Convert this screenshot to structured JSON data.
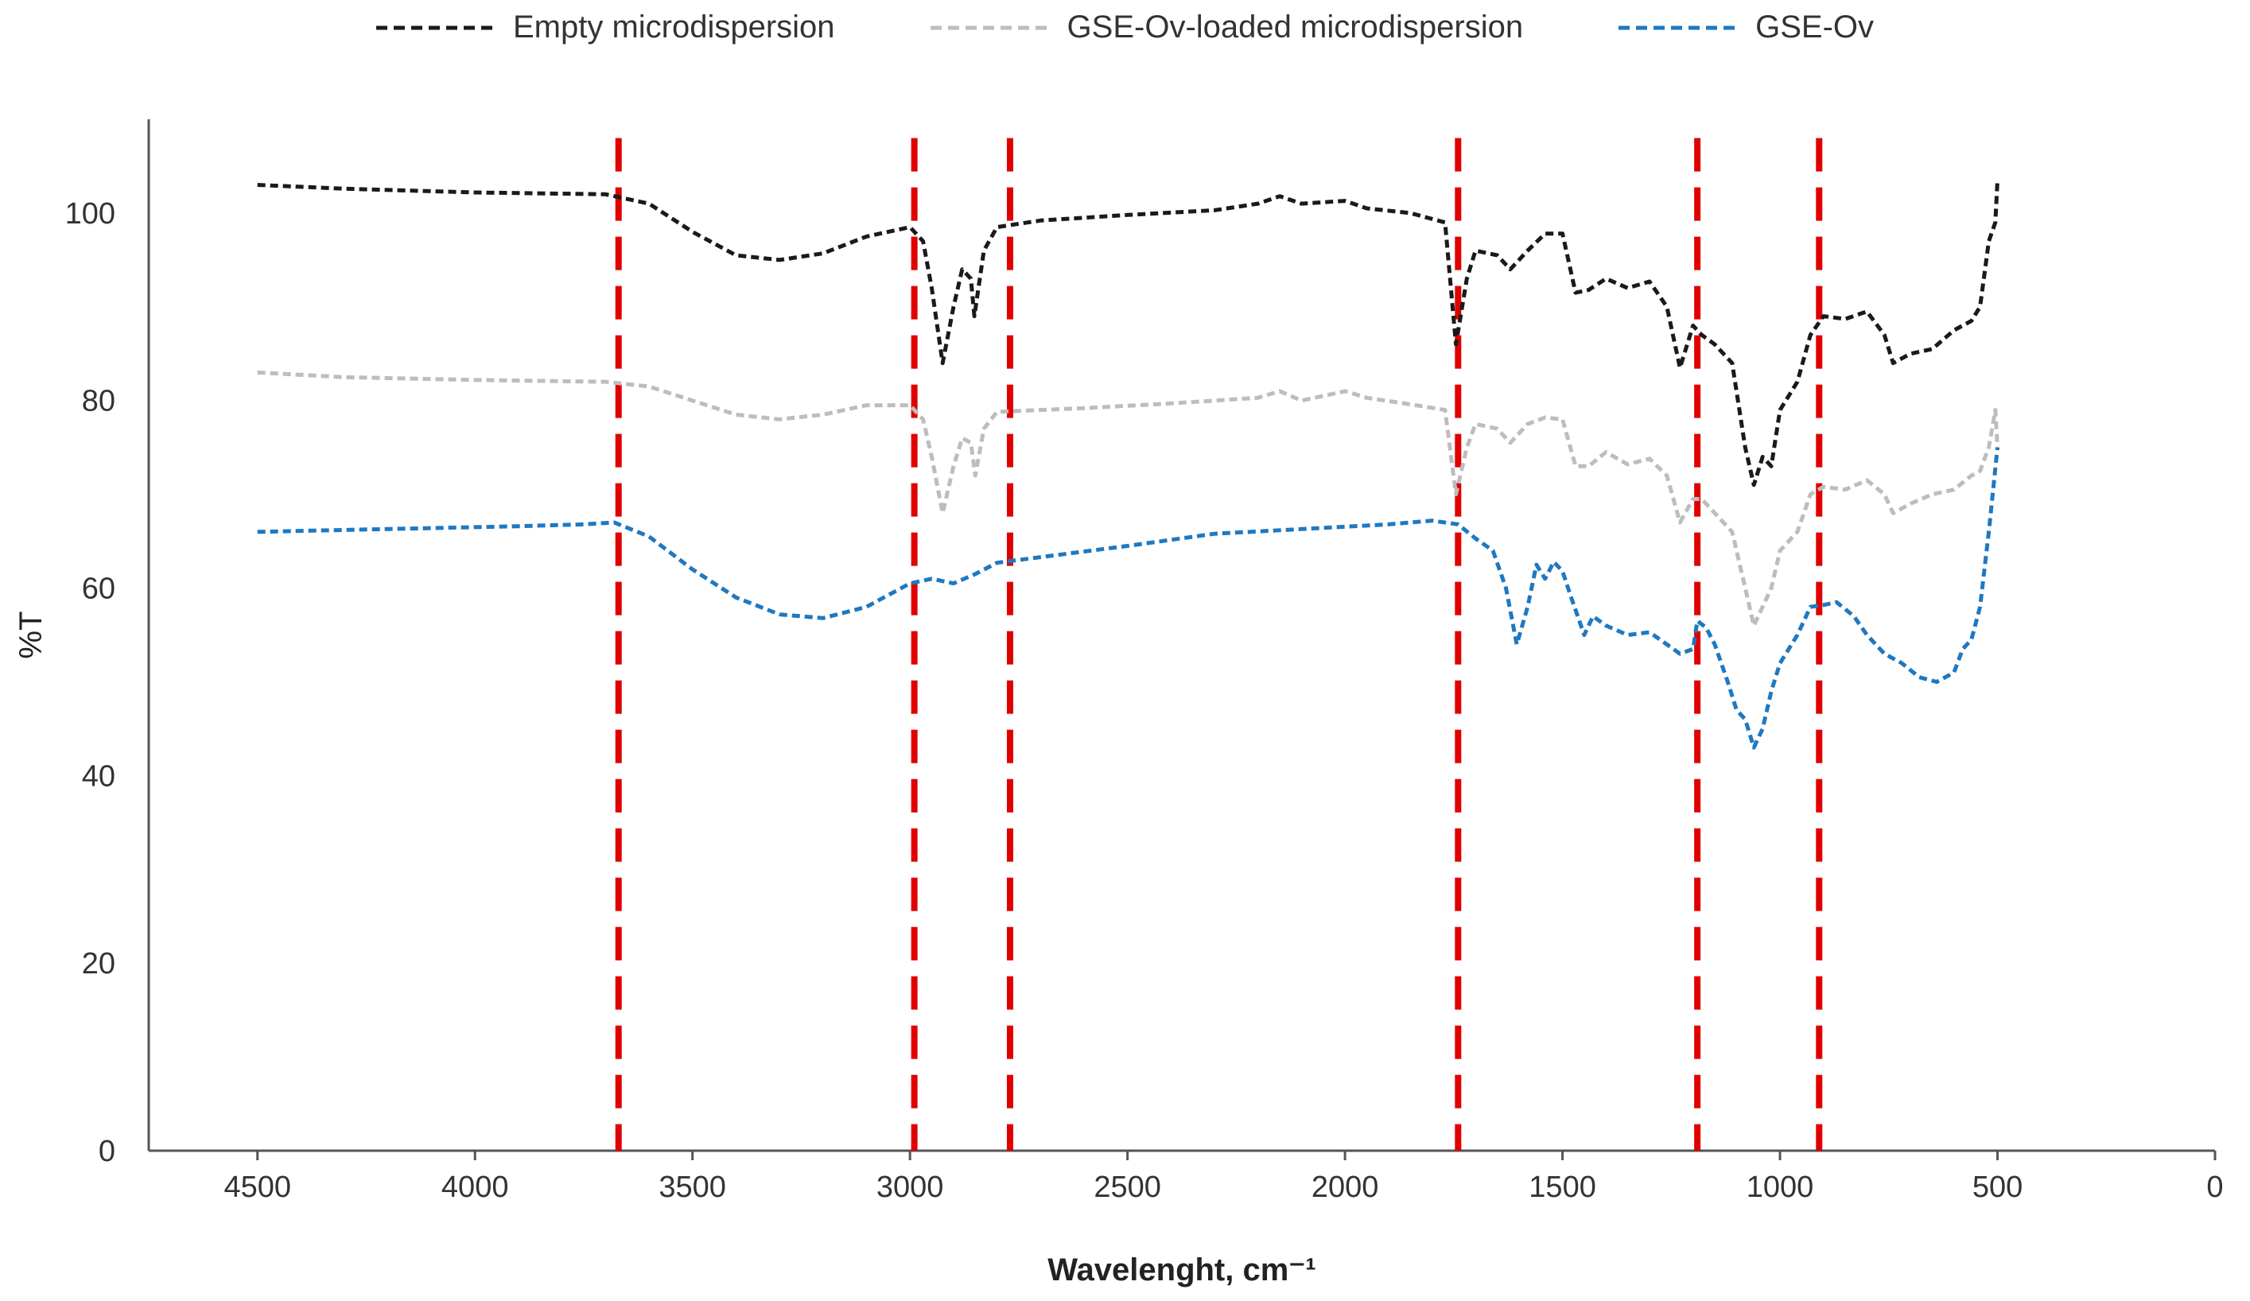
{
  "chart_data": {
    "type": "line",
    "title": "",
    "xlabel": "Wavelenght, cm⁻¹",
    "ylabel": "%T",
    "xlim": [
      4750,
      0
    ],
    "ylim": [
      0,
      110
    ],
    "x_ticks": [
      "4500",
      "4000",
      "3500",
      "3000",
      "2500",
      "2000",
      "1500",
      "1000",
      "500",
      "0"
    ],
    "y_ticks": [
      "0",
      "20",
      "40",
      "60",
      "80",
      "100"
    ],
    "x_tick_values": [
      4500,
      4000,
      3500,
      3000,
      2500,
      2000,
      1500,
      1000,
      500,
      0
    ],
    "y_tick_values": [
      0,
      20,
      40,
      60,
      80,
      100
    ],
    "legend_position": "top-center",
    "grid": false,
    "reference_lines": {
      "color": "#e00000",
      "x": [
        3670,
        2990,
        2770,
        1740,
        1190,
        910
      ]
    },
    "series": [
      {
        "name": "Empty microdispersion",
        "color": "#1a1a1a",
        "points": [
          [
            4500,
            103
          ],
          [
            4300,
            102.6
          ],
          [
            4000,
            102.2
          ],
          [
            3700,
            102
          ],
          [
            3600,
            101
          ],
          [
            3500,
            98
          ],
          [
            3400,
            95.5
          ],
          [
            3300,
            95
          ],
          [
            3200,
            95.7
          ],
          [
            3100,
            97.5
          ],
          [
            3000,
            98.5
          ],
          [
            2970,
            97
          ],
          [
            2950,
            92
          ],
          [
            2925,
            84
          ],
          [
            2900,
            90
          ],
          [
            2880,
            94
          ],
          [
            2860,
            93
          ],
          [
            2852,
            89
          ],
          [
            2830,
            96
          ],
          [
            2800,
            98.5
          ],
          [
            2700,
            99.2
          ],
          [
            2500,
            99.8
          ],
          [
            2300,
            100.3
          ],
          [
            2200,
            101
          ],
          [
            2150,
            101.8
          ],
          [
            2100,
            101
          ],
          [
            2000,
            101.3
          ],
          [
            1950,
            100.5
          ],
          [
            1850,
            100
          ],
          [
            1770,
            99
          ],
          [
            1745,
            86
          ],
          [
            1720,
            93
          ],
          [
            1700,
            96
          ],
          [
            1650,
            95.5
          ],
          [
            1620,
            94
          ],
          [
            1580,
            96
          ],
          [
            1540,
            97.8
          ],
          [
            1500,
            97.8
          ],
          [
            1470,
            91.5
          ],
          [
            1440,
            91.8
          ],
          [
            1400,
            93
          ],
          [
            1350,
            92
          ],
          [
            1300,
            92.7
          ],
          [
            1260,
            90
          ],
          [
            1230,
            83.5
          ],
          [
            1200,
            88
          ],
          [
            1180,
            87
          ],
          [
            1150,
            86
          ],
          [
            1110,
            84
          ],
          [
            1080,
            75
          ],
          [
            1060,
            71
          ],
          [
            1040,
            74
          ],
          [
            1020,
            73
          ],
          [
            1000,
            79
          ],
          [
            960,
            82
          ],
          [
            930,
            87
          ],
          [
            900,
            89
          ],
          [
            850,
            88.7
          ],
          [
            800,
            89.5
          ],
          [
            760,
            87
          ],
          [
            740,
            84
          ],
          [
            700,
            85
          ],
          [
            650,
            85.5
          ],
          [
            600,
            87.5
          ],
          [
            560,
            88.5
          ],
          [
            540,
            90
          ],
          [
            520,
            97
          ],
          [
            505,
            99
          ],
          [
            500,
            103.5
          ]
        ]
      },
      {
        "name": "GSE-Ov-loaded microdispersion",
        "color": "#bdbdbd",
        "points": [
          [
            4500,
            83
          ],
          [
            4300,
            82.5
          ],
          [
            4000,
            82.2
          ],
          [
            3700,
            82
          ],
          [
            3600,
            81.5
          ],
          [
            3500,
            80
          ],
          [
            3400,
            78.5
          ],
          [
            3300,
            78
          ],
          [
            3200,
            78.5
          ],
          [
            3100,
            79.5
          ],
          [
            3000,
            79.5
          ],
          [
            2970,
            78
          ],
          [
            2950,
            74
          ],
          [
            2925,
            68
          ],
          [
            2900,
            73
          ],
          [
            2880,
            76
          ],
          [
            2860,
            75.5
          ],
          [
            2850,
            72
          ],
          [
            2830,
            77
          ],
          [
            2800,
            78.8
          ],
          [
            2600,
            79.2
          ],
          [
            2400,
            79.7
          ],
          [
            2200,
            80.3
          ],
          [
            2150,
            81
          ],
          [
            2100,
            80
          ],
          [
            2000,
            81
          ],
          [
            1950,
            80.3
          ],
          [
            1850,
            79.6
          ],
          [
            1770,
            79
          ],
          [
            1745,
            70
          ],
          [
            1720,
            75
          ],
          [
            1700,
            77.5
          ],
          [
            1650,
            77
          ],
          [
            1620,
            75.5
          ],
          [
            1580,
            77.5
          ],
          [
            1540,
            78.2
          ],
          [
            1500,
            78
          ],
          [
            1470,
            73
          ],
          [
            1440,
            73
          ],
          [
            1400,
            74.5
          ],
          [
            1350,
            73.2
          ],
          [
            1300,
            73.8
          ],
          [
            1260,
            72
          ],
          [
            1230,
            67
          ],
          [
            1200,
            69.5
          ],
          [
            1180,
            69.5
          ],
          [
            1150,
            68
          ],
          [
            1110,
            66
          ],
          [
            1080,
            60
          ],
          [
            1060,
            56
          ],
          [
            1040,
            58
          ],
          [
            1020,
            60
          ],
          [
            1000,
            64
          ],
          [
            960,
            66
          ],
          [
            930,
            70
          ],
          [
            900,
            70.8
          ],
          [
            850,
            70.5
          ],
          [
            800,
            71.5
          ],
          [
            760,
            70
          ],
          [
            740,
            68
          ],
          [
            700,
            69
          ],
          [
            650,
            70
          ],
          [
            600,
            70.5
          ],
          [
            560,
            72
          ],
          [
            540,
            72.5
          ],
          [
            520,
            75
          ],
          [
            505,
            79
          ],
          [
            500,
            75
          ]
        ]
      },
      {
        "name": "GSE-Ov",
        "color": "#1f78c1",
        "points": [
          [
            4500,
            66
          ],
          [
            4300,
            66.2
          ],
          [
            4100,
            66.4
          ],
          [
            3900,
            66.6
          ],
          [
            3750,
            66.8
          ],
          [
            3680,
            67
          ],
          [
            3600,
            65.5
          ],
          [
            3500,
            62
          ],
          [
            3400,
            59
          ],
          [
            3300,
            57.2
          ],
          [
            3200,
            56.8
          ],
          [
            3100,
            58
          ],
          [
            3000,
            60.5
          ],
          [
            2950,
            61
          ],
          [
            2900,
            60.5
          ],
          [
            2850,
            61.5
          ],
          [
            2800,
            62.7
          ],
          [
            2700,
            63.3
          ],
          [
            2500,
            64.5
          ],
          [
            2300,
            65.8
          ],
          [
            2100,
            66.3
          ],
          [
            1900,
            66.8
          ],
          [
            1800,
            67.2
          ],
          [
            1740,
            66.8
          ],
          [
            1700,
            65.3
          ],
          [
            1660,
            64
          ],
          [
            1630,
            60
          ],
          [
            1605,
            54
          ],
          [
            1580,
            58
          ],
          [
            1560,
            62.5
          ],
          [
            1540,
            61
          ],
          [
            1520,
            62.8
          ],
          [
            1500,
            61.8
          ],
          [
            1480,
            59
          ],
          [
            1450,
            55
          ],
          [
            1430,
            57
          ],
          [
            1400,
            56
          ],
          [
            1350,
            55
          ],
          [
            1300,
            55.3
          ],
          [
            1260,
            54
          ],
          [
            1230,
            53
          ],
          [
            1200,
            53.5
          ],
          [
            1190,
            56.5
          ],
          [
            1170,
            55.8
          ],
          [
            1150,
            54
          ],
          [
            1120,
            50
          ],
          [
            1100,
            47
          ],
          [
            1080,
            46
          ],
          [
            1060,
            43
          ],
          [
            1040,
            45
          ],
          [
            1020,
            49
          ],
          [
            1000,
            52
          ],
          [
            960,
            55
          ],
          [
            930,
            58
          ],
          [
            900,
            58.2
          ],
          [
            870,
            58.5
          ],
          [
            830,
            57
          ],
          [
            800,
            55
          ],
          [
            760,
            53
          ],
          [
            720,
            52
          ],
          [
            680,
            50.5
          ],
          [
            640,
            50
          ],
          [
            600,
            51
          ],
          [
            580,
            53.5
          ],
          [
            560,
            54.5
          ],
          [
            540,
            58
          ],
          [
            520,
            66
          ],
          [
            500,
            75
          ]
        ]
      }
    ]
  }
}
